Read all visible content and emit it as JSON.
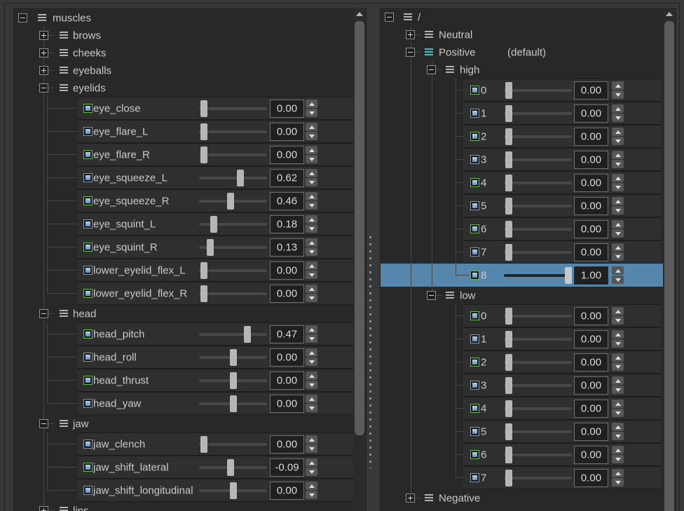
{
  "colors": {
    "selection": "#5586ad",
    "checkbox-border": "#5fc13c",
    "checkbox-top": "#b6d2e8",
    "checkbox-bottom": "#6191bf",
    "positive-icon": "#35c9c4",
    "icon-gray": "#b2b2b2",
    "text": "#c9c9c9",
    "value-text": "#d8d8d8",
    "tree-line": "#4a453e"
  },
  "icons": {
    "expander_collapsed": "plus-box-icon",
    "expander_expanded": "minus-box-icon",
    "item": "hamburger-icon",
    "enabled": "checkbox-filled"
  },
  "left_panel": {
    "rows": [
      {
        "kind": "group",
        "depth": 0,
        "expand": "minus",
        "label": "muscles"
      },
      {
        "kind": "group",
        "depth": 1,
        "expand": "plus",
        "label": "brows"
      },
      {
        "kind": "group",
        "depth": 1,
        "expand": "plus",
        "label": "cheeks"
      },
      {
        "kind": "group",
        "depth": 1,
        "expand": "plus",
        "label": "eyeballs"
      },
      {
        "kind": "group",
        "depth": 1,
        "expand": "minus",
        "label": "eyelids"
      },
      {
        "kind": "control",
        "depth": 2,
        "label": "eye_close",
        "value": "0.00",
        "pos": 0.02
      },
      {
        "kind": "control",
        "depth": 2,
        "label": "eye_flare_L",
        "value": "0.00",
        "pos": 0.02
      },
      {
        "kind": "control",
        "depth": 2,
        "label": "eye_flare_R",
        "value": "0.00",
        "pos": 0.02
      },
      {
        "kind": "control",
        "depth": 2,
        "label": "eye_squeeze_L",
        "value": "0.62",
        "pos": 0.62
      },
      {
        "kind": "control",
        "depth": 2,
        "label": "eye_squeeze_R",
        "value": "0.46",
        "pos": 0.46
      },
      {
        "kind": "control",
        "depth": 2,
        "label": "eye_squint_L",
        "value": "0.18",
        "pos": 0.18
      },
      {
        "kind": "control",
        "depth": 2,
        "label": "eye_squint_R",
        "value": "0.13",
        "pos": 0.13
      },
      {
        "kind": "control",
        "depth": 2,
        "label": "lower_eyelid_flex_L",
        "value": "0.00",
        "pos": 0.02
      },
      {
        "kind": "control",
        "depth": 2,
        "label": "lower_eyelid_flex_R",
        "value": "0.00",
        "pos": 0.02
      },
      {
        "kind": "group",
        "depth": 1,
        "expand": "minus",
        "label": "head"
      },
      {
        "kind": "control",
        "depth": 2,
        "label": "head_pitch",
        "value": "0.47",
        "pos": 0.735
      },
      {
        "kind": "control",
        "depth": 2,
        "label": "head_roll",
        "value": "0.00",
        "pos": 0.5
      },
      {
        "kind": "control",
        "depth": 2,
        "label": "head_thrust",
        "value": "0.00",
        "pos": 0.5
      },
      {
        "kind": "control",
        "depth": 2,
        "label": "head_yaw",
        "value": "0.00",
        "pos": 0.5
      },
      {
        "kind": "group",
        "depth": 1,
        "expand": "minus",
        "label": "jaw"
      },
      {
        "kind": "control",
        "depth": 2,
        "label": "jaw_clench",
        "value": "0.00",
        "pos": 0.02
      },
      {
        "kind": "control",
        "depth": 2,
        "label": "jaw_shift_lateral",
        "value": "-0.09",
        "pos": 0.455
      },
      {
        "kind": "control",
        "depth": 2,
        "label": "jaw_shift_longitudinal",
        "value": "0.00",
        "pos": 0.5
      },
      {
        "kind": "group",
        "depth": 1,
        "expand": "plus",
        "label": "lips"
      }
    ]
  },
  "right_panel": {
    "rows": [
      {
        "kind": "group",
        "depth": 0,
        "expand": "minus",
        "label": "/"
      },
      {
        "kind": "group",
        "depth": 1,
        "expand": "plus",
        "label": "Neutral"
      },
      {
        "kind": "group",
        "depth": 1,
        "expand": "minus",
        "label": "Positive",
        "suffix": "(default)",
        "icon_color": "cyan"
      },
      {
        "kind": "group",
        "depth": 2,
        "expand": "minus",
        "label": "high"
      },
      {
        "kind": "control",
        "depth": 3,
        "label": "0",
        "value": "0.00",
        "pos": 0.02
      },
      {
        "kind": "control",
        "depth": 3,
        "label": "1",
        "value": "0.00",
        "pos": 0.02
      },
      {
        "kind": "control",
        "depth": 3,
        "label": "2",
        "value": "0.00",
        "pos": 0.02
      },
      {
        "kind": "control",
        "depth": 3,
        "label": "3",
        "value": "0.00",
        "pos": 0.02
      },
      {
        "kind": "control",
        "depth": 3,
        "label": "4",
        "value": "0.00",
        "pos": 0.02
      },
      {
        "kind": "control",
        "depth": 3,
        "label": "5",
        "value": "0.00",
        "pos": 0.02
      },
      {
        "kind": "control",
        "depth": 3,
        "label": "6",
        "value": "0.00",
        "pos": 0.02
      },
      {
        "kind": "control",
        "depth": 3,
        "label": "7",
        "value": "0.00",
        "pos": 0.02
      },
      {
        "kind": "control",
        "depth": 3,
        "label": "8",
        "value": "1.00",
        "pos": 1.0,
        "selected": true
      },
      {
        "kind": "group",
        "depth": 2,
        "expand": "minus",
        "label": "low"
      },
      {
        "kind": "control",
        "depth": 3,
        "label": "0",
        "value": "0.00",
        "pos": 0.02
      },
      {
        "kind": "control",
        "depth": 3,
        "label": "1",
        "value": "0.00",
        "pos": 0.02
      },
      {
        "kind": "control",
        "depth": 3,
        "label": "2",
        "value": "0.00",
        "pos": 0.02
      },
      {
        "kind": "control",
        "depth": 3,
        "label": "3",
        "value": "0.00",
        "pos": 0.02
      },
      {
        "kind": "control",
        "depth": 3,
        "label": "4",
        "value": "0.00",
        "pos": 0.02
      },
      {
        "kind": "control",
        "depth": 3,
        "label": "5",
        "value": "0.00",
        "pos": 0.02
      },
      {
        "kind": "control",
        "depth": 3,
        "label": "6",
        "value": "0.00",
        "pos": 0.02
      },
      {
        "kind": "control",
        "depth": 3,
        "label": "7",
        "value": "0.00",
        "pos": 0.02
      },
      {
        "kind": "group",
        "depth": 1,
        "expand": "plus",
        "label": "Negative"
      }
    ]
  }
}
